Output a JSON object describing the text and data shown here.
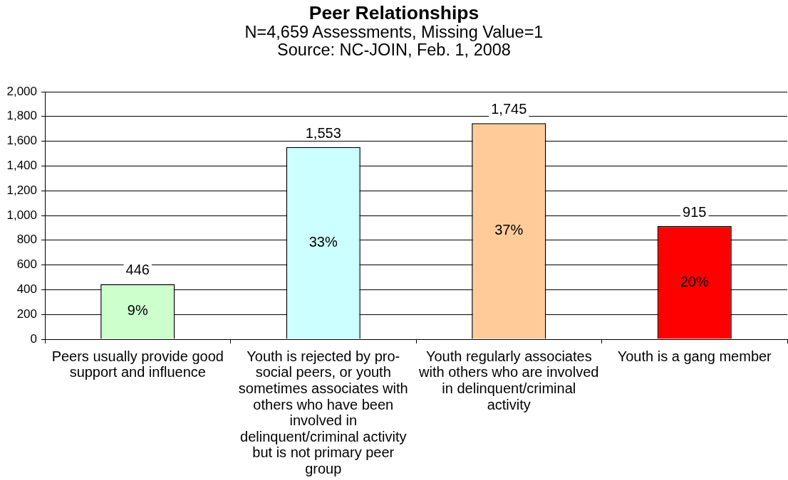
{
  "chart_data": {
    "type": "bar",
    "title": "Peer Relationships",
    "subtitle": "N=4,659 Assessments, Missing Value=1",
    "annotations": [
      "Source: NC-JOIN, Feb. 1, 2008",
      "9%",
      "33%",
      "37%",
      "20%"
    ],
    "categories": [
      "Peers usually provide good support and influence",
      "Youth is rejected by pro-social peers, or youth sometimes associates with others who have been involved in delinquent/criminal activity but is not primary peer group",
      "Youth regularly associates with others who are involved in delinquent/criminal activity",
      "Youth is a gang member"
    ],
    "values": [
      446,
      1553,
      1745,
      915
    ],
    "value_labels": [
      "446",
      "1,553",
      "1,745",
      "915"
    ],
    "colors": [
      "#ccffcc",
      "#ccffff",
      "#ffcc99",
      "#ff0000"
    ],
    "ylim": [
      0,
      2000
    ],
    "yticks": [
      0,
      200,
      400,
      600,
      800,
      {
        "value": 1000,
        "label": "1,000"
      },
      {
        "value": 1200,
        "label": "1,200"
      },
      {
        "value": 1400,
        "label": "1,400"
      },
      {
        "value": 1600,
        "label": "1,600"
      },
      {
        "value": 1800,
        "label": "1,800"
      },
      {
        "value": 2000,
        "label": "2,000"
      }
    ],
    "grid": "y"
  }
}
